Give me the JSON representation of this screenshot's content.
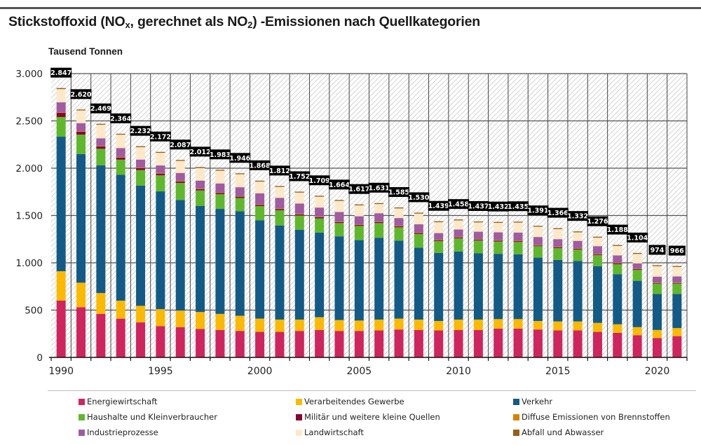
{
  "title": {
    "prefix": "Stickstoffoxid (NO",
    "sub1": "x",
    "middle": ", gerechnet als NO",
    "sub2": "2",
    "suffix": ") -Emissionen nach Quellkategorien"
  },
  "chart_data": {
    "type": "bar",
    "stacked": true,
    "title": "Stickstoffoxid (NOx, gerechnet als NO2) -Emissionen nach Quellkategorien",
    "ylabel": "Tausend Tonnen",
    "xlabel": "",
    "ylim": [
      0,
      3000
    ],
    "yticks": [
      0,
      500,
      1000,
      1500,
      2000,
      2500,
      3000
    ],
    "ytick_labels": [
      "0",
      "500",
      "1.000",
      "1.500",
      "2.000",
      "2.500",
      "3.000"
    ],
    "xtick_labels": [
      "1990",
      "1995",
      "2000",
      "2005",
      "2010",
      "2015",
      "2020"
    ],
    "grid": true,
    "legend_position": "bottom",
    "categories": [
      "1990",
      "1991",
      "1992",
      "1993",
      "1994",
      "1995",
      "1996",
      "1997",
      "1998",
      "1999",
      "2000",
      "2001",
      "2002",
      "2003",
      "2004",
      "2005",
      "2006",
      "2007",
      "2008",
      "2009",
      "2010",
      "2011",
      "2012",
      "2013",
      "2014",
      "2015",
      "2016",
      "2017",
      "2018",
      "2019",
      "2020",
      "2021"
    ],
    "totals": [
      2847,
      2620,
      2469,
      2364,
      2232,
      2172,
      2087,
      2012,
      1983,
      1946,
      1868,
      1812,
      1752,
      1709,
      1664,
      1617,
      1631,
      1585,
      1530,
      1439,
      1458,
      1437,
      1432,
      1435,
      1391,
      1366,
      1332,
      1276,
      1188,
      1104,
      974,
      966
    ],
    "total_labels": [
      "2.847",
      "2.620",
      "2.469",
      "2.364",
      "2.232",
      "2.172",
      "2.087",
      "2.012",
      "1.983",
      "1.946",
      "1.868",
      "1.812",
      "1.752",
      "1.709",
      "1.664",
      "1.617",
      "1.631",
      "1.585",
      "1.530",
      "1.439",
      "1.458",
      "1.437",
      "1.432",
      "1.435",
      "1.391",
      "1.366",
      "1.332",
      "1.276",
      "1.188",
      "1.104",
      "974",
      "966"
    ],
    "series": [
      {
        "name": "Energiewirtschaft",
        "color": "#d0245e",
        "values": [
          600,
          530,
          460,
          410,
          370,
          330,
          320,
          300,
          290,
          280,
          270,
          270,
          280,
          290,
          280,
          280,
          285,
          295,
          290,
          285,
          289,
          290,
          305,
          305,
          295,
          285,
          285,
          270,
          260,
          235,
          205,
          225
        ]
      },
      {
        "name": "Verarbeitendes Gewerbe",
        "color": "#fbb900",
        "values": [
          311,
          260,
          220,
          190,
          175,
          180,
          175,
          180,
          170,
          160,
          140,
          130,
          120,
          135,
          115,
          110,
          115,
          115,
          110,
          100,
          111,
          110,
          100,
          100,
          90,
          95,
          95,
          95,
          90,
          85,
          85,
          85
        ]
      },
      {
        "name": "Verkehr",
        "color": "#135b86",
        "values": [
          1422,
          1360,
          1350,
          1330,
          1270,
          1245,
          1170,
          1120,
          1110,
          1105,
          1040,
          995,
          950,
          895,
          885,
          850,
          865,
          825,
          760,
          720,
          720,
          700,
          690,
          685,
          670,
          650,
          640,
          600,
          530,
          490,
          380,
          360
        ]
      },
      {
        "name": "Haushalte und Kleinverbraucher",
        "color": "#5fb82c",
        "values": [
          208,
          205,
          175,
          160,
          165,
          170,
          180,
          165,
          155,
          140,
          150,
          160,
          150,
          150,
          140,
          150,
          155,
          140,
          145,
          125,
          138,
          135,
          130,
          130,
          120,
          125,
          120,
          115,
          105,
          115,
          110,
          110
        ]
      },
      {
        "name": "Militär und weitere kleine Quellen",
        "color": "#870532",
        "values": [
          44,
          30,
          25,
          22,
          20,
          18,
          15,
          14,
          14,
          14,
          12,
          12,
          12,
          12,
          11,
          10,
          10,
          10,
          10,
          9,
          9,
          9,
          9,
          9,
          8,
          8,
          8,
          8,
          8,
          8,
          7,
          7
        ]
      },
      {
        "name": "Diffuse Emissionen von Brennstoffen",
        "color": "#d68400",
        "values": [
          6,
          6,
          6,
          6,
          6,
          6,
          6,
          5,
          5,
          5,
          5,
          5,
          5,
          5,
          5,
          5,
          5,
          5,
          5,
          5,
          5,
          5,
          5,
          5,
          5,
          5,
          5,
          5,
          5,
          5,
          5,
          5
        ]
      },
      {
        "name": "Industrieprozesse",
        "color": "#a05ba1",
        "values": [
          105,
          85,
          80,
          95,
          85,
          80,
          84,
          85,
          95,
          95,
          118,
          115,
          110,
          97,
          101,
          87,
          89,
          83,
          87,
          70,
          80,
          80,
          83,
          86,
          85,
          82,
          79,
          83,
          80,
          56,
          62,
          64
        ]
      },
      {
        "name": "Landwirtschaft",
        "color": "#fde9c8",
        "values": [
          140,
          134,
          143,
          141,
          131,
          133,
          127,
          133,
          134,
          137,
          123,
          115,
          115,
          115,
          117,
          115,
          97,
          102,
          113,
          115,
          96,
          98,
          100,
          105,
          108,
          106,
          90,
          90,
          100,
          100,
          110,
          100
        ]
      },
      {
        "name": "Abfall und Abwasser",
        "color": "#9c5d12",
        "values": [
          11,
          10,
          10,
          10,
          10,
          10,
          10,
          10,
          10,
          10,
          10,
          10,
          10,
          10,
          10,
          10,
          10,
          10,
          10,
          10,
          10,
          10,
          10,
          10,
          10,
          10,
          10,
          10,
          10,
          10,
          10,
          10
        ]
      }
    ]
  },
  "legend": [
    {
      "label": "Energiewirtschaft",
      "color": "#d0245e"
    },
    {
      "label": "Verarbeitendes Gewerbe",
      "color": "#fbb900"
    },
    {
      "label": "Verkehr",
      "color": "#135b86"
    },
    {
      "label": "Haushalte und Kleinverbraucher",
      "color": "#5fb82c"
    },
    {
      "label": "Militär und weitere kleine Quellen",
      "color": "#870532"
    },
    {
      "label": "Diffuse Emissionen von Brennstoffen",
      "color": "#d68400"
    },
    {
      "label": "Industrieprozesse",
      "color": "#a05ba1"
    },
    {
      "label": "Landwirtschaft",
      "color": "#fde9c8"
    },
    {
      "label": "Abfall und Abwasser",
      "color": "#9c5d12"
    }
  ]
}
